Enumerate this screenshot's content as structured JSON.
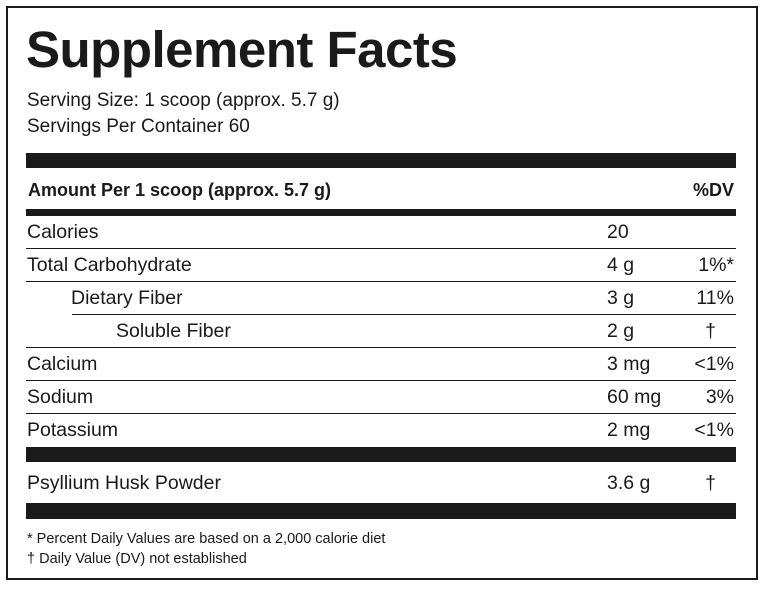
{
  "title": "Supplement Facts",
  "serving_size": "Serving Size: 1 scoop (approx. 5.7 g)",
  "servings_per_container": "Servings Per Container 60",
  "header": {
    "amount": "Amount Per 1 scoop (approx. 5.7 g)",
    "dv": "%DV"
  },
  "rows": [
    {
      "name": "Calories",
      "amount": "20",
      "dv": ""
    },
    {
      "name": "Total Carbohydrate",
      "amount": "4 g",
      "dv": "1%*"
    },
    {
      "name": "Dietary Fiber",
      "amount": "3 g",
      "dv": "11%"
    },
    {
      "name": "Soluble Fiber",
      "amount": "2 g",
      "dv": "†"
    },
    {
      "name": "Calcium",
      "amount": "3 mg",
      "dv": "<1%"
    },
    {
      "name": "Sodium",
      "amount": "60 mg",
      "dv": "3%"
    },
    {
      "name": "Potassium",
      "amount": "2 mg",
      "dv": "<1%"
    }
  ],
  "other": [
    {
      "name": "Psyllium Husk Powder",
      "amount": "3.6 g",
      "dv": "†"
    }
  ],
  "footnotes": [
    "* Percent Daily Values are based on a 2,000 calorie diet",
    "† Daily Value (DV) not established"
  ]
}
